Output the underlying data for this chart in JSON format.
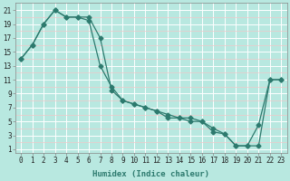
{
  "xlabel": "Humidex (Indice chaleur)",
  "bg_color": "#b8e8e0",
  "grid_major_color": "#ffffff",
  "grid_minor_color": "#f0c8c8",
  "line_color": "#2d7a6e",
  "xlim": [
    -0.5,
    23.5
  ],
  "ylim": [
    0.5,
    22
  ],
  "xticks": [
    0,
    1,
    2,
    3,
    4,
    5,
    6,
    7,
    8,
    9,
    10,
    11,
    12,
    13,
    14,
    15,
    16,
    17,
    18,
    19,
    20,
    21,
    22,
    23
  ],
  "yticks": [
    1,
    3,
    5,
    7,
    9,
    11,
    13,
    15,
    17,
    19,
    21
  ],
  "series1_x": [
    0,
    1,
    2,
    3,
    4,
    5,
    6,
    7,
    8,
    9,
    10,
    11,
    12,
    13,
    14,
    15,
    16,
    17,
    18,
    19,
    20,
    21,
    22,
    23
  ],
  "series1_y": [
    14,
    16,
    19,
    21,
    20,
    20,
    20,
    17,
    9.5,
    8,
    7.5,
    7,
    6.5,
    6,
    5.5,
    5.5,
    5,
    4,
    3.2,
    1.5,
    1.5,
    4.5,
    11,
    11
  ],
  "series2_x": [
    0,
    1,
    2,
    3,
    4,
    5,
    6,
    7,
    8,
    9,
    10,
    11,
    12,
    13,
    14,
    15,
    16,
    17,
    18,
    19,
    20,
    21,
    22,
    23
  ],
  "series2_y": [
    14,
    16,
    19,
    21,
    20,
    20,
    19.5,
    13,
    10,
    8,
    7.5,
    7,
    6.5,
    5.5,
    5.5,
    5,
    5,
    3.5,
    3.2,
    1.5,
    1.5,
    1.5,
    11,
    11
  ],
  "tick_fontsize": 5.5,
  "xlabel_fontsize": 6.5,
  "marker_size": 2.5,
  "line_width": 0.9
}
